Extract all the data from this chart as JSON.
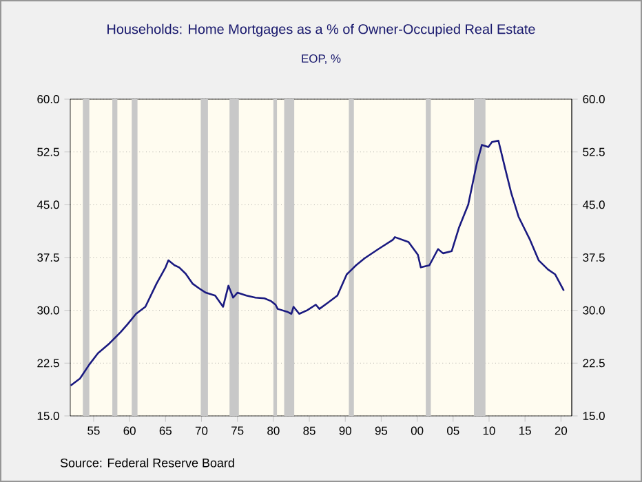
{
  "chart_data": {
    "type": "line",
    "title": "Households: Home Mortgages as a % of Owner-Occupied Real Estate",
    "subtitle": "EOP, %",
    "annotations": [
      "Source:  Federal Reserve Board"
    ],
    "series": [
      {
        "color": "#1a1a80",
        "x": [
          1951.8,
          1953.1,
          1954.4,
          1955.6,
          1957.2,
          1958.75,
          1959.7,
          1960.9,
          1962.2,
          1963.75,
          1965,
          1965.4,
          1966.25,
          1966.9,
          1967.8,
          1968.75,
          1969.7,
          1970.6,
          1971.9,
          1973,
          1973.75,
          1974.4,
          1975,
          1976.25,
          1977.5,
          1978.75,
          1979.7,
          1980.3,
          1980.6,
          1981.9,
          1982.5,
          1982.8,
          1983.6,
          1984.7,
          1985.9,
          1986.4,
          1987.6,
          1988.9,
          1990.2,
          1991.5,
          1992.7,
          1994.6,
          1996.6,
          1996.9,
          1998.8,
          2000.1,
          2000.5,
          2001.7,
          2002.9,
          2003.6,
          2004.8,
          2005.8,
          2007.1,
          2008.3,
          2009,
          2009.9,
          2010.4,
          2011.3,
          2012.2,
          2013.1,
          2014.1,
          2015.7,
          2016.9,
          2018.2,
          2019.2,
          2020.4
        ],
        "values": [
          19.3,
          20.3,
          22.3,
          23.9,
          25.3,
          26.9,
          28.0,
          29.5,
          30.5,
          33.8,
          36.1,
          37.1,
          36.4,
          36.1,
          35.2,
          33.8,
          33.1,
          32.5,
          32.1,
          30.5,
          33.5,
          31.8,
          32.5,
          32.1,
          31.8,
          31.7,
          31.3,
          30.8,
          30.2,
          29.8,
          29.5,
          30.5,
          29.5,
          30.0,
          30.8,
          30.2,
          31.1,
          32.1,
          35.1,
          36.4,
          37.4,
          38.7,
          40.0,
          40.4,
          39.7,
          37.9,
          36.1,
          36.4,
          38.7,
          38.1,
          38.4,
          41.7,
          45.0,
          50.9,
          53.5,
          53.2,
          53.9,
          54.1,
          50.3,
          46.6,
          43.3,
          40.0,
          37.1,
          35.8,
          35.1,
          32.8
        ]
      }
    ],
    "xlim": [
      1951.75,
      2021.5
    ],
    "xticks": [
      {
        "value": 1955,
        "label": "55"
      },
      {
        "value": 1960,
        "label": "60"
      },
      {
        "value": 1965,
        "label": "65"
      },
      {
        "value": 1970,
        "label": "70"
      },
      {
        "value": 1975,
        "label": "75"
      },
      {
        "value": 1980,
        "label": "80"
      },
      {
        "value": 1985,
        "label": "85"
      },
      {
        "value": 1990,
        "label": "90"
      },
      {
        "value": 1995,
        "label": "95"
      },
      {
        "value": 2000,
        "label": "00"
      },
      {
        "value": 2005,
        "label": "05"
      },
      {
        "value": 2010,
        "label": "10"
      },
      {
        "value": 2015,
        "label": "15"
      },
      {
        "value": 2020,
        "label": "20"
      }
    ],
    "ylim": [
      15,
      60
    ],
    "yticks": [
      {
        "value": 15,
        "label": "15.0"
      },
      {
        "value": 22.5,
        "label": "22.5"
      },
      {
        "value": 30,
        "label": "30.0"
      },
      {
        "value": 37.5,
        "label": "37.5"
      },
      {
        "value": 45,
        "label": "45.0"
      },
      {
        "value": 52.5,
        "label": "52.5"
      },
      {
        "value": 60,
        "label": "60.0"
      }
    ],
    "y2lim": [
      15,
      60
    ],
    "y2ticks": [
      {
        "value": 15,
        "label": "15.0"
      },
      {
        "value": 22.5,
        "label": "22.5"
      },
      {
        "value": 30,
        "label": "30.0"
      },
      {
        "value": 37.5,
        "label": "37.5"
      },
      {
        "value": 45,
        "label": "45.0"
      },
      {
        "value": 52.5,
        "label": "52.5"
      },
      {
        "value": 60,
        "label": "60.0"
      }
    ],
    "bands": [
      {
        "axis": "x",
        "from": 1953.5,
        "to": 1954.4,
        "color": "#c8c8c8"
      },
      {
        "axis": "x",
        "from": 1957.6,
        "to": 1958.3,
        "color": "#c8c8c8"
      },
      {
        "axis": "x",
        "from": 1960.3,
        "to": 1961.1,
        "color": "#c8c8c8"
      },
      {
        "axis": "x",
        "from": 1969.9,
        "to": 1970.9,
        "color": "#c8c8c8"
      },
      {
        "axis": "x",
        "from": 1973.9,
        "to": 1975.2,
        "color": "#c8c8c8"
      },
      {
        "axis": "x",
        "from": 1980.0,
        "to": 1980.5,
        "color": "#c8c8c8"
      },
      {
        "axis": "x",
        "from": 1981.5,
        "to": 1982.9,
        "color": "#c8c8c8"
      },
      {
        "axis": "x",
        "from": 1990.5,
        "to": 1991.2,
        "color": "#c8c8c8"
      },
      {
        "axis": "x",
        "from": 2001.2,
        "to": 2001.9,
        "color": "#c8c8c8"
      },
      {
        "axis": "x",
        "from": 2007.9,
        "to": 2009.5,
        "color": "#c8c8c8"
      }
    ],
    "grid": "y",
    "marker": "none",
    "line_style": "solid"
  }
}
